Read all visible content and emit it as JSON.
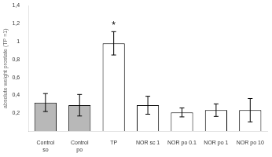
{
  "chart_data": {
    "type": "bar",
    "categories": [
      "Control\nso",
      "Control\npo",
      "TP",
      "NOR sc 1",
      "NOR po 0.1",
      "NOR po 1",
      "NOR po 10"
    ],
    "values": [
      0.32,
      0.29,
      0.98,
      0.29,
      0.21,
      0.235,
      0.235
    ],
    "errors": [
      0.1,
      0.12,
      0.13,
      0.1,
      0.05,
      0.07,
      0.13
    ],
    "colors": [
      "#b8b8b8",
      "#b8b8b8",
      "#ffffff",
      "#ffffff",
      "#ffffff",
      "#ffffff",
      "#ffffff"
    ],
    "ylabel": "absolute weight prostate (TP =1)",
    "ylim": [
      0,
      1.4
    ],
    "yticks": [
      {
        "value": 0.2,
        "label": "0,2"
      },
      {
        "value": 0.4,
        "label": "0,4"
      },
      {
        "value": 0.6,
        "label": "0,6"
      },
      {
        "value": 0.8,
        "label": "0,8"
      },
      1,
      {
        "value": 1.2,
        "label": "1,2"
      },
      {
        "value": 1.4,
        "label": "1,4"
      }
    ],
    "annotations": [
      {
        "text": "*",
        "x": "TP"
      }
    ],
    "grid": false
  }
}
